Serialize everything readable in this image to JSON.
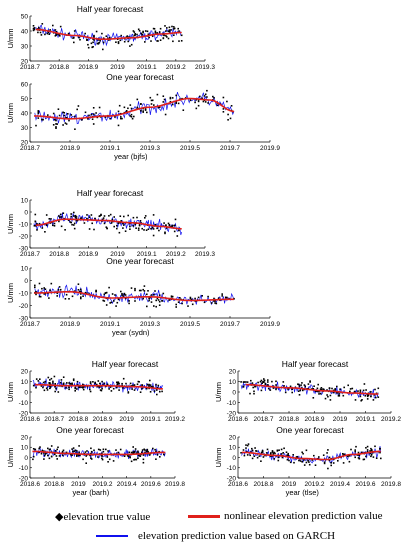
{
  "legend": {
    "true_marker": "◆",
    "true_label": "elevation true value",
    "nonlinear_label": "nonlinear elevation prediction value",
    "garch_label": "elevation prediction value based on GARCH",
    "colors": {
      "true": "#000000",
      "nonlinear": "#e0201b",
      "garch": "#1010ee"
    }
  },
  "chart_data": [
    {
      "type": "scatter",
      "station": "bjfs",
      "title": "Half year forecast",
      "xlabel": "",
      "ylabel": "U/mm",
      "xlim": [
        2018.7,
        2019.3
      ],
      "xticks": [
        "2018.7",
        "2018.8",
        "2018.9",
        "2019",
        "2019.1",
        "2019.2",
        "2019.3"
      ],
      "ylim": [
        20,
        50
      ],
      "yticks": [
        "20",
        "30",
        "40",
        "50"
      ],
      "x_end": 2019.22,
      "nonlinear": [
        [
          2018.72,
          41
        ],
        [
          2018.85,
          37
        ],
        [
          2018.95,
          34.5
        ],
        [
          2019.05,
          35.5
        ],
        [
          2019.15,
          38
        ],
        [
          2019.22,
          39
        ]
      ]
    },
    {
      "type": "scatter",
      "station": "bjfs",
      "title": "One year forecast",
      "xlabel": "year  (bjfs)",
      "ylabel": "U/mm",
      "xlim": [
        2018.7,
        2019.9
      ],
      "xticks": [
        "2018.7",
        "2018.9",
        "2019.1",
        "2019.3",
        "2019.5",
        "2019.7",
        "2019.9"
      ],
      "ylim": [
        20,
        60
      ],
      "yticks": [
        "20",
        "30",
        "40",
        "50",
        "60"
      ],
      "x_end": 2019.72,
      "nonlinear": [
        [
          2018.72,
          38
        ],
        [
          2018.9,
          36
        ],
        [
          2019.1,
          38
        ],
        [
          2019.3,
          44
        ],
        [
          2019.5,
          50
        ],
        [
          2019.6,
          49
        ],
        [
          2019.72,
          41
        ]
      ]
    },
    {
      "type": "scatter",
      "station": "sydn",
      "title": "Half year forecast",
      "xlabel": "",
      "ylabel": "U/mm",
      "xlim": [
        2018.7,
        2019.3
      ],
      "xticks": [
        "2018.7",
        "2018.8",
        "2018.9",
        "2019",
        "2019.1",
        "2019.2",
        "2019.3"
      ],
      "ylim": [
        -30,
        10
      ],
      "yticks": [
        "10",
        "0",
        "-10",
        "-20",
        "-30"
      ],
      "x_end": 2019.22,
      "nonlinear": [
        [
          2018.72,
          -11
        ],
        [
          2018.82,
          -6
        ],
        [
          2018.95,
          -7
        ],
        [
          2019.05,
          -9
        ],
        [
          2019.15,
          -12
        ],
        [
          2019.22,
          -14
        ]
      ]
    },
    {
      "type": "scatter",
      "station": "sydn",
      "title": "One year forecast",
      "xlabel": "year  (sydn)",
      "ylabel": "U/mm",
      "xlim": [
        2018.7,
        2019.9
      ],
      "xticks": [
        "2018.7",
        "2018.9",
        "2019.1",
        "2019.3",
        "2019.5",
        "2019.7",
        "2019.9"
      ],
      "ylim": [
        -30,
        10
      ],
      "yticks": [
        "10",
        "0",
        "-10",
        "-20",
        "-30"
      ],
      "x_end": 2019.72,
      "nonlinear": [
        [
          2018.72,
          -10
        ],
        [
          2018.9,
          -9
        ],
        [
          2019.1,
          -14
        ],
        [
          2019.3,
          -13
        ],
        [
          2019.5,
          -16
        ],
        [
          2019.72,
          -15
        ]
      ]
    },
    {
      "type": "scatter",
      "station": "barh",
      "title": "Half year forecast",
      "xlabel": "",
      "ylabel": "U/mm",
      "xlim": [
        2018.6,
        2019.2
      ],
      "xticks": [
        "2018.6",
        "2018.7",
        "2018.8",
        "2018.9",
        "2019",
        "2019.1",
        "2019.2"
      ],
      "ylim": [
        -20,
        20
      ],
      "yticks": [
        "20",
        "10",
        "0",
        "-10",
        "-20"
      ],
      "x_end": 2019.15,
      "nonlinear": [
        [
          2018.62,
          7
        ],
        [
          2018.75,
          6
        ],
        [
          2018.9,
          6
        ],
        [
          2019.05,
          5
        ],
        [
          2019.15,
          3
        ]
      ]
    },
    {
      "type": "scatter",
      "station": "barh",
      "title": "One year forecast",
      "xlabel": "year  (barh)",
      "ylabel": "U/mm",
      "xlim": [
        2018.6,
        2019.8
      ],
      "xticks": [
        "2018.6",
        "2018.8",
        "2019",
        "2019.2",
        "2019.4",
        "2019.6",
        "2019.8"
      ],
      "ylim": [
        -20,
        20
      ],
      "yticks": [
        "20",
        "10",
        "0",
        "-10",
        "-20"
      ],
      "x_end": 2019.72,
      "nonlinear": [
        [
          2018.62,
          6
        ],
        [
          2018.9,
          4
        ],
        [
          2019.1,
          3
        ],
        [
          2019.4,
          3
        ],
        [
          2019.72,
          5
        ]
      ]
    },
    {
      "type": "scatter",
      "station": "tlse",
      "title": "Half year forecast",
      "xlabel": "",
      "ylabel": "U/mm",
      "xlim": [
        2018.6,
        2019.2
      ],
      "xticks": [
        "2018.6",
        "2018.7",
        "2018.8",
        "2018.9",
        "2019",
        "2019.1",
        "2019.2"
      ],
      "ylim": [
        -20,
        20
      ],
      "yticks": [
        "20",
        "10",
        "0",
        "-10",
        "-20"
      ],
      "x_end": 2019.15,
      "nonlinear": [
        [
          2018.63,
          7
        ],
        [
          2018.8,
          4
        ],
        [
          2018.95,
          1
        ],
        [
          2019.05,
          -1
        ],
        [
          2019.15,
          -2
        ]
      ]
    },
    {
      "type": "scatter",
      "station": "tlse",
      "title": "One year forecast",
      "xlabel": "year  (tlse)",
      "ylabel": "U/mm",
      "xlim": [
        2018.6,
        2019.8
      ],
      "xticks": [
        "2018.6",
        "2018.8",
        "2019",
        "2019.2",
        "2019.4",
        "2019.6",
        "2019.8"
      ],
      "ylim": [
        -20,
        20
      ],
      "yticks": [
        "20",
        "10",
        "0",
        "-10",
        "-20"
      ],
      "x_end": 2019.72,
      "nonlinear": [
        [
          2018.63,
          5
        ],
        [
          2018.9,
          2
        ],
        [
          2019.1,
          -1
        ],
        [
          2019.3,
          -2
        ],
        [
          2019.5,
          3
        ],
        [
          2019.72,
          6
        ]
      ]
    }
  ]
}
